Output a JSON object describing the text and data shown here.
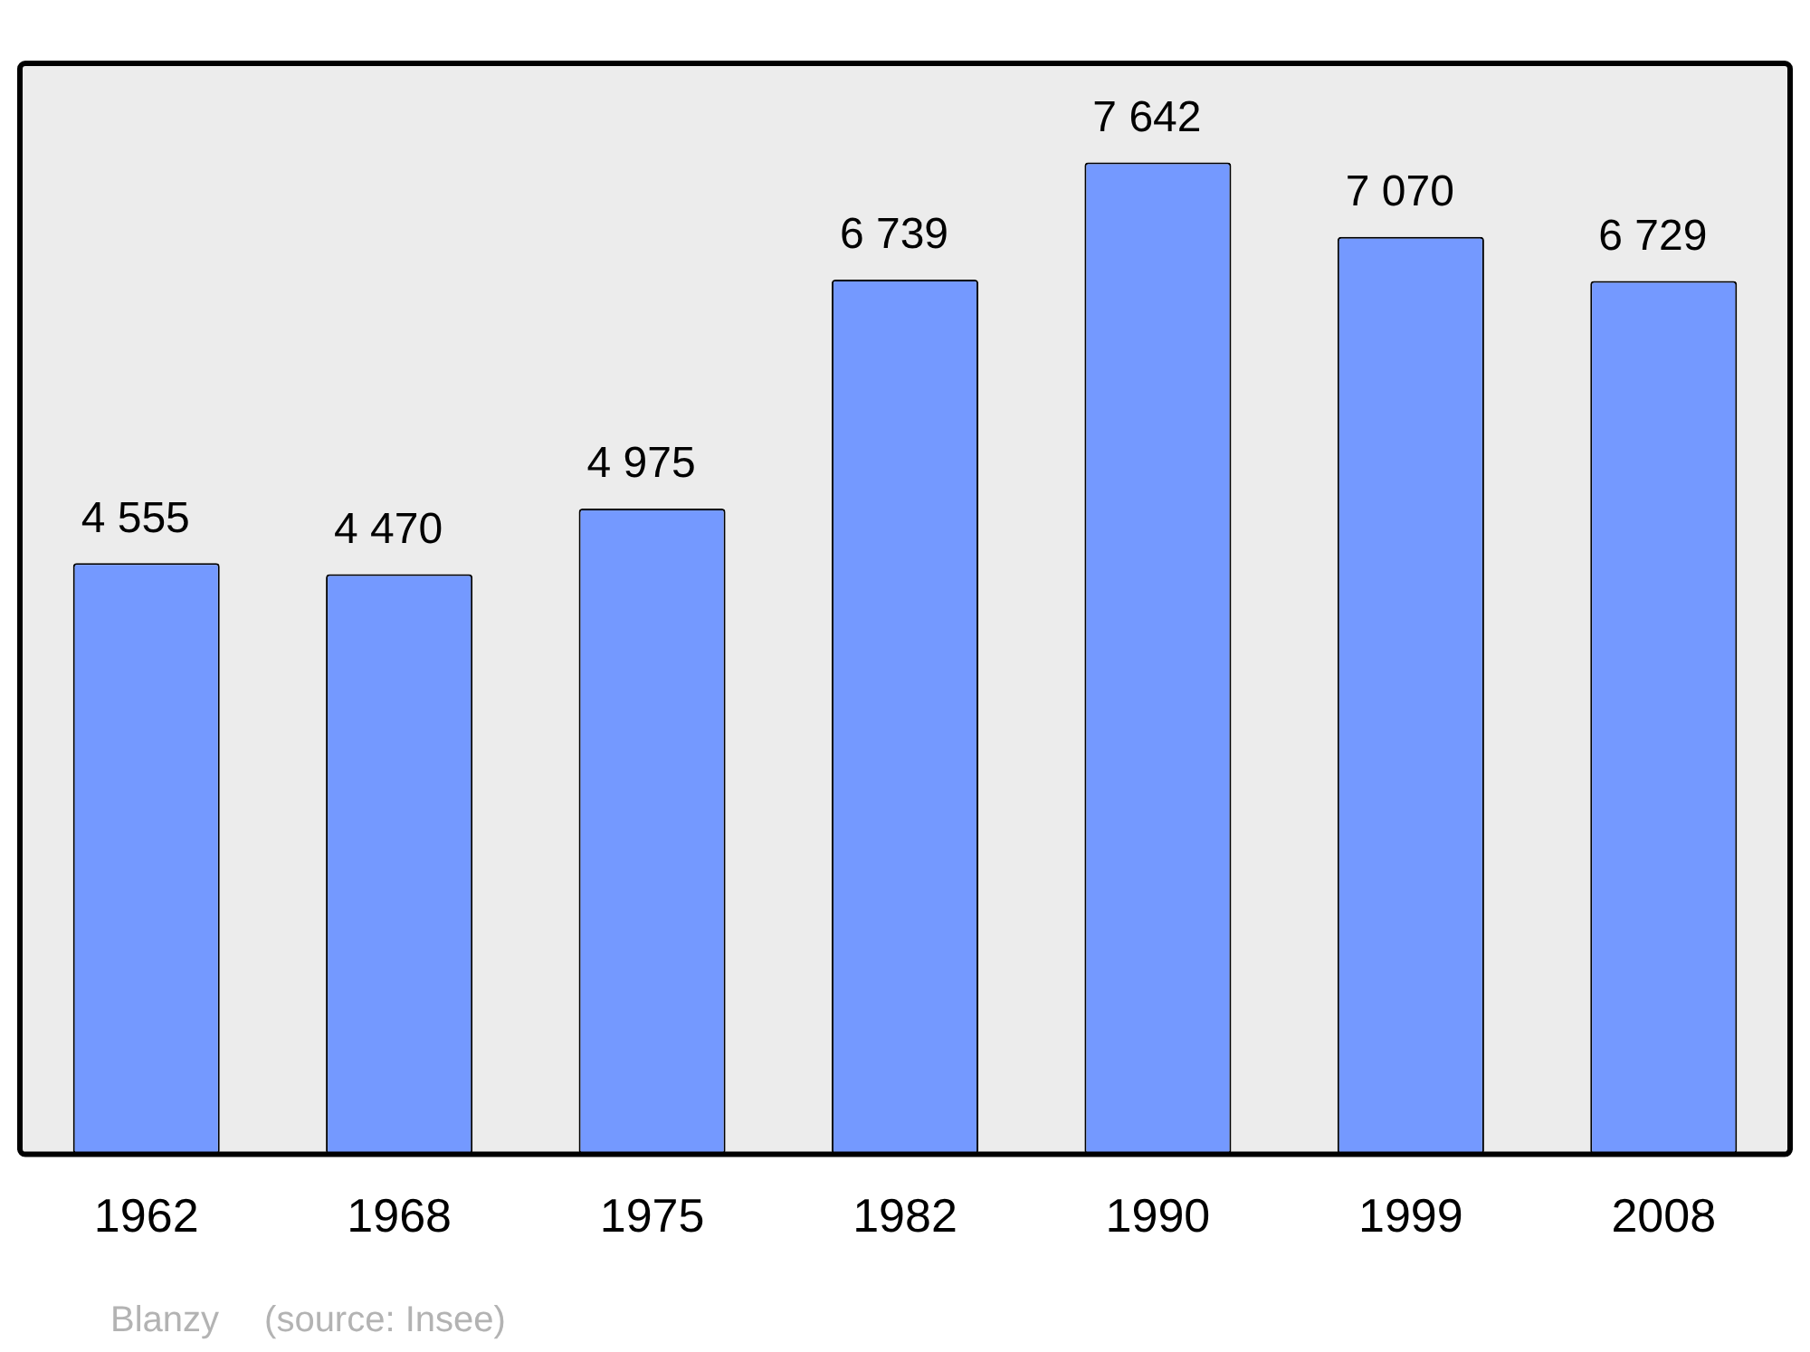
{
  "chart_data": {
    "type": "bar",
    "categories": [
      "1962",
      "1968",
      "1975",
      "1982",
      "1990",
      "1999",
      "2008"
    ],
    "values": [
      4555,
      4470,
      4975,
      6739,
      7642,
      7070,
      6729
    ],
    "value_labels": [
      "4 555",
      "4 470",
      "4 975",
      "6 739",
      "7 642",
      "7 070",
      "6 729"
    ],
    "color": "#7499ff",
    "annotations": [
      "Blanzy",
      "(source: Insee)"
    ],
    "grid": false,
    "legend": false
  }
}
